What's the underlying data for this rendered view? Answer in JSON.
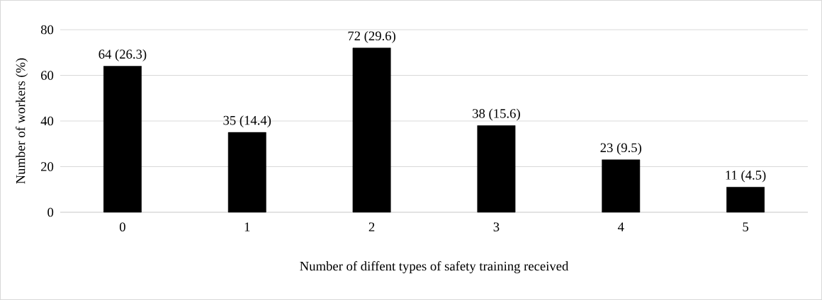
{
  "chart_data": {
    "type": "bar",
    "xlabel": "Number of diffent types of safety training received",
    "ylabel": "Number of workers  (%)",
    "categories": [
      "0",
      "1",
      "2",
      "3",
      "4",
      "5"
    ],
    "values": [
      64,
      35,
      72,
      38,
      23,
      11
    ],
    "value_labels": [
      "64 (26.3)",
      "35 (14.4)",
      "72 (29.6)",
      "38 (15.6)",
      "23 (9.5)",
      "11 (4.5)"
    ],
    "color": "#000000",
    "ylim": [
      0,
      80
    ],
    "yticks": [
      0,
      20,
      40,
      60,
      80
    ],
    "grid": "y"
  }
}
